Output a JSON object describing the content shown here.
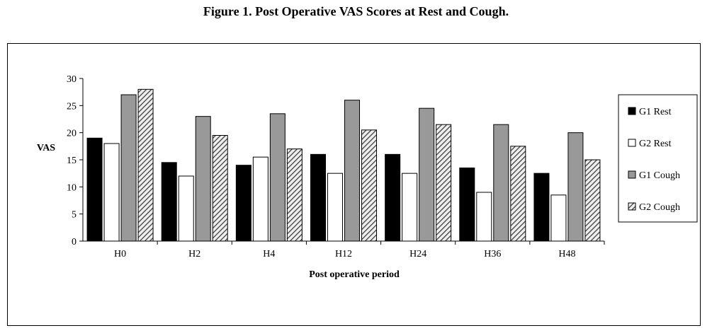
{
  "title": "Figure 1. Post Operative VAS Scores at Rest and Cough.",
  "chart_data": {
    "type": "bar",
    "categories": [
      "H0",
      "H2",
      "H4",
      "H12",
      "H24",
      "H36",
      "H48"
    ],
    "series": [
      {
        "name": "G1 Rest",
        "values": [
          19,
          14.5,
          14,
          16,
          16,
          13.5,
          12.5
        ],
        "fill": "solid-black"
      },
      {
        "name": "G2 Rest",
        "values": [
          18,
          12,
          15.5,
          12.5,
          12.5,
          9,
          8.5
        ],
        "fill": "white"
      },
      {
        "name": "G1 Cough",
        "values": [
          27,
          23,
          23.5,
          26,
          24.5,
          21.5,
          20
        ],
        "fill": "gray"
      },
      {
        "name": "G2 Cough",
        "values": [
          28,
          19.5,
          17,
          20.5,
          21.5,
          17.5,
          15
        ],
        "fill": "diagonal-hatch"
      }
    ],
    "xlabel": "Post operative period",
    "ylabel": "VAS",
    "ylim": [
      0,
      30
    ],
    "yticks": [
      0,
      5,
      10,
      15,
      20,
      25,
      30
    ],
    "grid": false,
    "legend": "right",
    "colors": {
      "solid": "#000000",
      "white": "#ffffff",
      "gray": "#999999",
      "hatch_bg": "#eeeeee",
      "hatch_line": "#333333"
    }
  }
}
